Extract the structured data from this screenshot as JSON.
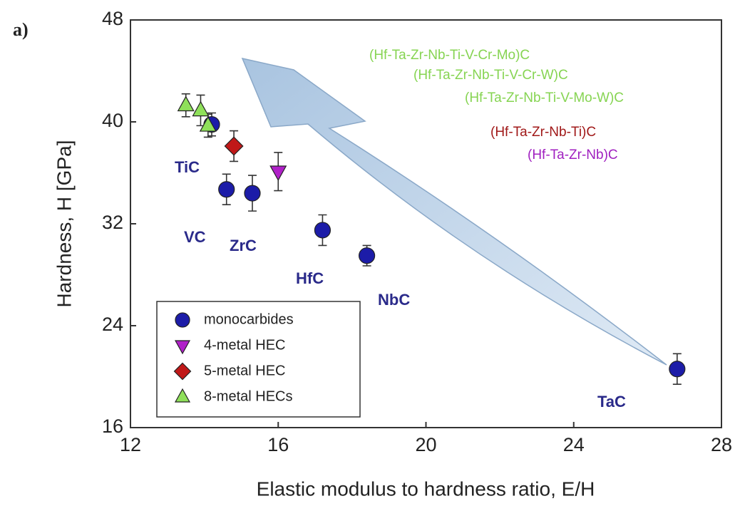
{
  "chart_data": {
    "type": "scatter",
    "panel_label": "a)",
    "x_label": "Elastic modulus to hardness ratio, E/H",
    "y_label": "Hardness, H [GPa]",
    "xlim": [
      12,
      28
    ],
    "xticks": [
      12,
      16,
      20,
      24,
      28
    ],
    "ylim": [
      16,
      48
    ],
    "yticks": [
      16,
      24,
      32,
      40,
      48
    ],
    "grid": false,
    "legend": "lower left",
    "series": [
      {
        "name": "monocarbides",
        "color": "#1c1ca8",
        "marker": "circle",
        "x": [
          14.2,
          14.6,
          15.3,
          17.2,
          18.4,
          26.8
        ],
        "values": [
          39.8,
          34.7,
          34.4,
          31.5,
          29.5,
          20.6
        ],
        "errors": [
          0.9,
          1.2,
          1.4,
          1.2,
          0.8,
          1.2
        ]
      },
      {
        "name": "4-metal HEC",
        "color": "#b020c8",
        "marker": "triangle-down",
        "x": [
          16.0
        ],
        "values": [
          36.1
        ],
        "errors": [
          1.5
        ]
      },
      {
        "name": "5-metal HEC",
        "color": "#c01818",
        "marker": "diamond",
        "x": [
          14.8
        ],
        "values": [
          38.1
        ],
        "errors": [
          1.2
        ]
      },
      {
        "name": "8-metal HECs",
        "color": "#8fe05a",
        "marker": "triangle-up",
        "x": [
          13.5,
          13.9,
          14.1
        ],
        "values": [
          41.3,
          40.9,
          39.7
        ],
        "errors": [
          0.9,
          1.2,
          0.9
        ]
      }
    ],
    "annotations": [
      {
        "text": "TiC",
        "color": "#2a2a8a"
      },
      {
        "text": "VC",
        "color": "#2a2a8a"
      },
      {
        "text": "ZrC",
        "color": "#2a2a8a"
      },
      {
        "text": "HfC",
        "color": "#2a2a8a"
      },
      {
        "text": "NbC",
        "color": "#2a2a8a"
      },
      {
        "text": "TaC",
        "color": "#2a2a8a"
      },
      {
        "text": "(Hf-Ta-Zr-Nb-Ti-V-Cr-Mo)C",
        "color": "#86d452"
      },
      {
        "text": "(Hf-Ta-Zr-Nb-Ti-V-Cr-W)C",
        "color": "#86d452"
      },
      {
        "text": "(Hf-Ta-Zr-Nb-Ti-V-Mo-W)C",
        "color": "#86d452"
      },
      {
        "text": "(Hf-Ta-Zr-Nb-Ti)C",
        "color": "#a01818"
      },
      {
        "text": "(Hf-Ta-Zr-Nb)C",
        "color": "#a020c0"
      }
    ]
  }
}
